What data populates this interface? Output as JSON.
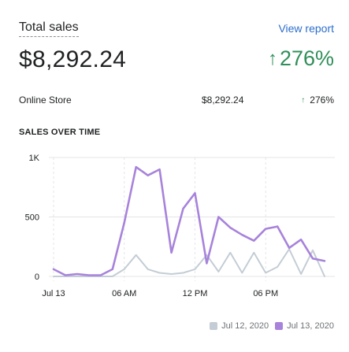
{
  "header": {
    "title": "Total sales",
    "view_report": "View report",
    "total_value": "$8,292.24",
    "total_change": "276%"
  },
  "breakdown": [
    {
      "label": "Online Store",
      "value": "$8,292.24",
      "change": "276%"
    }
  ],
  "section_heading": "SALES OVER TIME",
  "colors": {
    "accent_link": "#2c6ecb",
    "positive": "#2f8f58",
    "current_series": "#a783db",
    "previous_series": "#c4cdd5"
  },
  "icons": [
    "arrow-up-icon"
  ],
  "chart_data": {
    "type": "line",
    "x": [
      "00:00",
      "01:00",
      "02:00",
      "03:00",
      "04:00",
      "05:00",
      "06:00",
      "07:00",
      "08:00",
      "09:00",
      "10:00",
      "11:00",
      "12:00",
      "13:00",
      "14:00",
      "15:00",
      "16:00",
      "17:00",
      "18:00",
      "19:00",
      "20:00",
      "21:00",
      "22:00",
      "23:00"
    ],
    "x_tick_labels": [
      "Jul 13",
      "06 AM",
      "12 PM",
      "06 PM"
    ],
    "y_tick_labels": [
      "0",
      "500",
      "1K"
    ],
    "ylim": [
      0,
      1000
    ],
    "grid": true,
    "legend_placement": "bottom-right",
    "series": [
      {
        "name": "Jul 12, 2020",
        "color": "#c4cdd5",
        "values": [
          0,
          0,
          0,
          0,
          0,
          0,
          60,
          180,
          60,
          30,
          20,
          30,
          60,
          180,
          40,
          200,
          30,
          200,
          30,
          80,
          230,
          20,
          220,
          0
        ]
      },
      {
        "name": "Jul 13, 2020",
        "color": "#a783db",
        "values": [
          60,
          10,
          20,
          10,
          10,
          60,
          450,
          920,
          850,
          900,
          200,
          570,
          700,
          110,
          500,
          410,
          350,
          300,
          400,
          420,
          240,
          310,
          150,
          130
        ]
      }
    ]
  }
}
